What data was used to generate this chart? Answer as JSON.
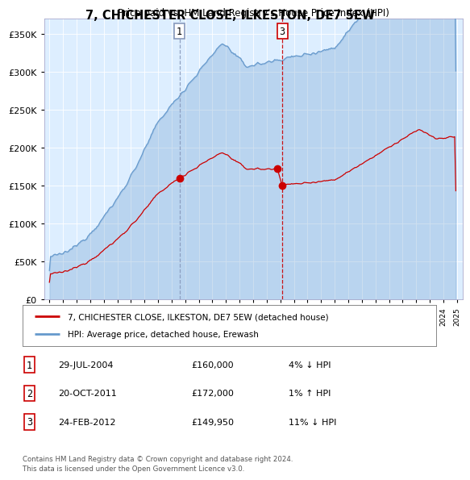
{
  "title": "7, CHICHESTER CLOSE, ILKESTON, DE7 5EW",
  "subtitle": "Price paid vs. HM Land Registry's House Price Index (HPI)",
  "background_color": "#ddeeff",
  "red_color": "#cc0000",
  "blue_color": "#6699cc",
  "vline1_color": "#8899bb",
  "vline3_color": "#cc0000",
  "ylim": [
    0,
    370000
  ],
  "yticks": [
    0,
    50000,
    100000,
    150000,
    200000,
    250000,
    300000,
    350000
  ],
  "ytick_labels": [
    "£0",
    "£50K",
    "£100K",
    "£150K",
    "£200K",
    "£250K",
    "£300K",
    "£350K"
  ],
  "sale1_date": 2004.57,
  "sale1_price": 160000,
  "sale2_date": 2011.79,
  "sale2_price": 172000,
  "sale3_date": 2012.14,
  "sale3_price": 149950,
  "xlim_left": 1994.6,
  "xlim_right": 2025.4,
  "legend_entries": [
    "7, CHICHESTER CLOSE, ILKESTON, DE7 5EW (detached house)",
    "HPI: Average price, detached house, Erewash"
  ],
  "table_rows": [
    [
      "1",
      "29-JUL-2004",
      "£160,000",
      "4% ↓ HPI"
    ],
    [
      "2",
      "20-OCT-2011",
      "£172,000",
      "1% ↑ HPI"
    ],
    [
      "3",
      "24-FEB-2012",
      "£149,950",
      "11% ↓ HPI"
    ]
  ],
  "footer": "Contains HM Land Registry data © Crown copyright and database right 2024.\nThis data is licensed under the Open Government Licence v3.0."
}
